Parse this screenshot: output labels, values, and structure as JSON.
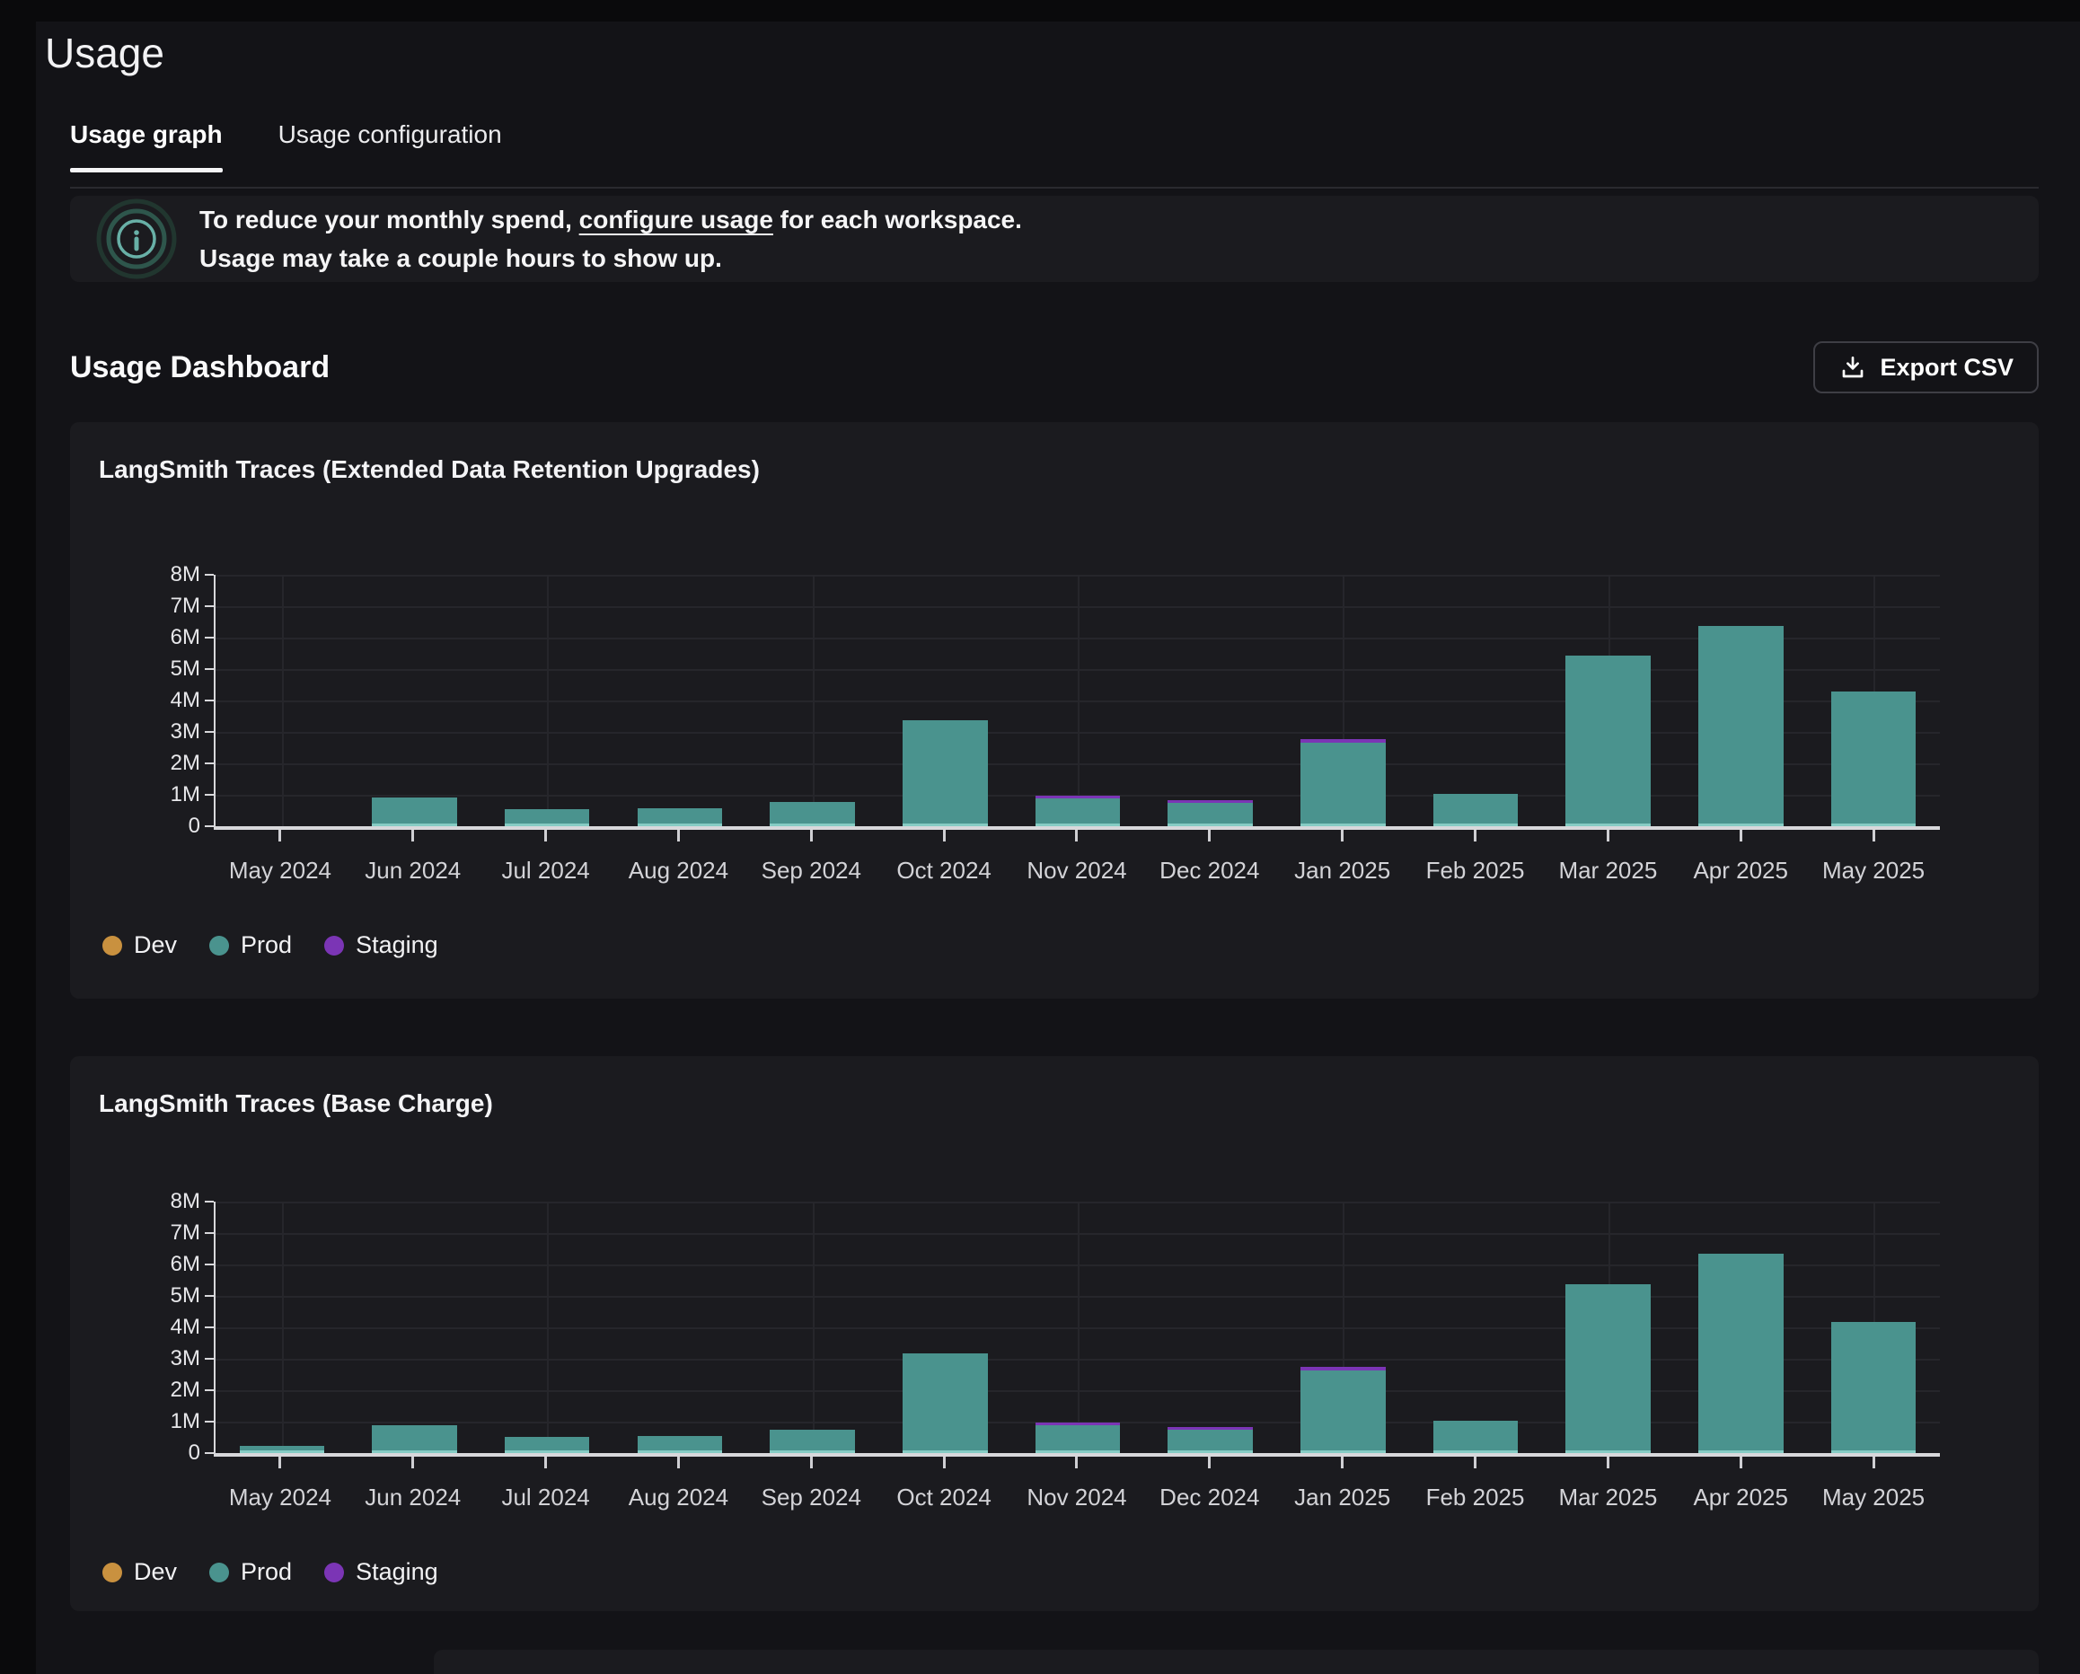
{
  "page": {
    "title": "Usage"
  },
  "tabs": [
    {
      "label": "Usage graph",
      "active": true
    },
    {
      "label": "Usage configuration",
      "active": false
    }
  ],
  "banner": {
    "line1_prefix": "To reduce your monthly spend, ",
    "line1_link": "configure usage",
    "line1_suffix": " for each workspace.",
    "line2": "Usage may take a couple hours to show up.",
    "icon": "info-icon",
    "icon_color": "#68b0a7"
  },
  "dashboard": {
    "heading": "Usage Dashboard",
    "export_label": "Export CSV",
    "export_icon": "download-icon"
  },
  "legend": {
    "items": [
      {
        "label": "Dev",
        "color": "#c9913f"
      },
      {
        "label": "Prod",
        "color": "#4a938e"
      },
      {
        "label": "Staging",
        "color": "#7b35b5"
      }
    ]
  },
  "chart_data": [
    {
      "type": "bar",
      "stacked": true,
      "title": "LangSmith Traces (Extended Data Retention Upgrades)",
      "categories": [
        "May 2024",
        "Jun 2024",
        "Jul 2024",
        "Aug 2024",
        "Sep 2024",
        "Oct 2024",
        "Nov 2024",
        "Dec 2024",
        "Jan 2025",
        "Feb 2025",
        "Mar 2025",
        "Apr 2025",
        "May 2025"
      ],
      "series": [
        {
          "name": "Dev",
          "color": "#c9913f",
          "values_millions": [
            0,
            0,
            0,
            0,
            0,
            0,
            0,
            0,
            0,
            0,
            0,
            0,
            0
          ]
        },
        {
          "name": "Prod",
          "color": "#4a938e",
          "values_millions": [
            0,
            0.82,
            0.45,
            0.5,
            0.68,
            3.28,
            0.8,
            0.65,
            2.58,
            0.95,
            5.35,
            6.3,
            4.2
          ]
        },
        {
          "name": "Staging",
          "color": "#7b35b5",
          "values_millions": [
            0,
            0,
            0,
            0,
            0,
            0,
            0.1,
            0.1,
            0.12,
            0,
            0,
            0,
            0
          ]
        }
      ],
      "yticks": [
        "8M",
        "7M",
        "6M",
        "5M",
        "4M",
        "3M",
        "2M",
        "1M",
        "0"
      ],
      "ymax_millions": 8,
      "grid": true,
      "legend_position": "bottom-left"
    },
    {
      "type": "bar",
      "stacked": true,
      "title": "LangSmith Traces (Base Charge)",
      "categories": [
        "May 2024",
        "Jun 2024",
        "Jul 2024",
        "Aug 2024",
        "Sep 2024",
        "Oct 2024",
        "Nov 2024",
        "Dec 2024",
        "Jan 2025",
        "Feb 2025",
        "Mar 2025",
        "Apr 2025",
        "May 2025"
      ],
      "series": [
        {
          "name": "Dev",
          "color": "#c9913f",
          "values_millions": [
            0,
            0,
            0,
            0,
            0,
            0,
            0,
            0,
            0,
            0,
            0,
            0,
            0
          ]
        },
        {
          "name": "Prod",
          "color": "#4a938e",
          "values_millions": [
            0.15,
            0.8,
            0.43,
            0.46,
            0.66,
            3.08,
            0.8,
            0.65,
            2.55,
            0.95,
            5.3,
            6.25,
            4.1
          ]
        },
        {
          "name": "Staging",
          "color": "#7b35b5",
          "values_millions": [
            0,
            0,
            0,
            0,
            0,
            0,
            0.1,
            0.1,
            0.12,
            0,
            0,
            0,
            0
          ]
        }
      ],
      "yticks": [
        "8M",
        "7M",
        "6M",
        "5M",
        "4M",
        "3M",
        "2M",
        "1M",
        "0"
      ],
      "ymax_millions": 8,
      "grid": true,
      "legend_position": "bottom-left"
    }
  ]
}
